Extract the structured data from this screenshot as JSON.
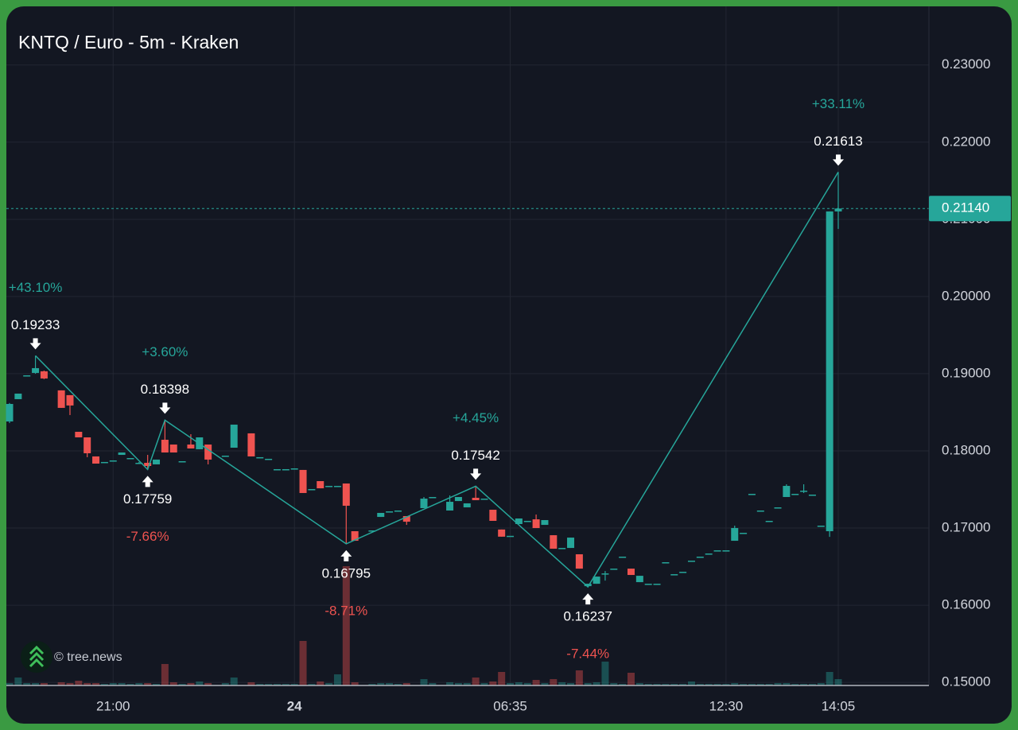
{
  "chart_data": {
    "type": "candlestick",
    "title": "KNTQ / Euro - 5m - Kraken",
    "watermark": "© tree.news",
    "up_color": "#26a69a",
    "down_color": "#ef5350",
    "grid": true,
    "categories": [
      null,
      null,
      null,
      null,
      null,
      null,
      null,
      null,
      null,
      null,
      null,
      null,
      "21:00",
      null,
      null,
      null,
      null,
      null,
      null,
      null,
      null,
      null,
      null,
      null,
      null,
      null,
      null,
      null,
      null,
      null,
      null,
      null,
      null,
      "24",
      null,
      null,
      null,
      null,
      null,
      null,
      null,
      null,
      null,
      null,
      null,
      null,
      null,
      null,
      null,
      null,
      null,
      null,
      null,
      null,
      null,
      null,
      null,
      null,
      "06:35",
      null,
      null,
      null,
      null,
      null,
      null,
      null,
      null,
      null,
      null,
      null,
      null,
      null,
      null,
      null,
      null,
      null,
      null,
      null,
      null,
      null,
      null,
      null,
      null,
      "12:30",
      null,
      null,
      null,
      null,
      null,
      null,
      null,
      null,
      null,
      null,
      null,
      null,
      "14:05"
    ],
    "open": [
      0.18381,
      0.1867,
      0.18979,
      0.1901,
      0.19031,
      null,
      0.18784,
      0.18722,
      0.18247,
      0.18175,
      0.17928,
      0.17856,
      0.17876,
      0.17948,
      0.17907,
      0.17835,
      0.17845,
      0.17825,
      0.18144,
      0.18082,
      0.17866,
      0.18082,
      0.18021,
      0.18082,
      null,
      0.17938,
      0.18041,
      null,
      0.18227,
      0.17918,
      0.17897,
      0.17763,
      0.17763,
      0.17773,
      0.17753,
      0.17505,
      0.17608,
      0.17546,
      0.17546,
      0.17577,
      0.16959,
      null,
      0.16969,
      0.17144,
      0.17216,
      0.17227,
      0.17155,
      null,
      0.17258,
      0.17402,
      null,
      0.17227,
      0.1735,
      0.17268,
      0.17392,
      0.17381,
      0.17237,
      0.16981,
      0.16899,
      0.17052,
      0.17093,
      0.17113,
      0.17041,
      0.16907,
      0.16742,
      0.16742,
      0.1666,
      0.16247,
      0.16278,
      0.16412,
      0.16474,
      0.16629,
      0.16474,
      0.16299,
      0.16278,
      0.16278,
      0.16557,
      0.16402,
      0.16433,
      0.16577,
      0.16629,
      0.1667,
      0.16711,
      0.16711,
      0.16835,
      0.16938,
      0.17443,
      0.17227,
      0.17093,
      0.17268,
      0.17402,
      0.17443,
      0.17484,
      0.17433,
      0.17031,
      0.16959,
      0.21103
    ],
    "high": [
      0.1862,
      0.18742,
      0.18979,
      0.19233,
      0.1904,
      null,
      0.18784,
      0.18722,
      0.18247,
      0.18175,
      0.17928,
      0.17856,
      0.17876,
      0.17979,
      0.17907,
      0.17856,
      0.17948,
      0.17887,
      0.18398,
      0.18082,
      0.17866,
      0.18216,
      0.18175,
      0.18082,
      null,
      0.17938,
      0.1834,
      null,
      0.18227,
      0.17918,
      0.17897,
      0.17763,
      0.17763,
      0.17773,
      0.17753,
      0.17505,
      0.17608,
      0.17546,
      0.17546,
      0.17577,
      0.16959,
      null,
      0.16969,
      0.17196,
      0.17216,
      0.17227,
      0.17155,
      null,
      0.17402,
      0.17402,
      null,
      0.17423,
      0.17402,
      0.1732,
      0.17542,
      0.17381,
      0.17237,
      0.16981,
      0.16899,
      0.17124,
      0.17093,
      0.17175,
      0.17103,
      0.16907,
      0.16742,
      0.16876,
      0.1666,
      0.16278,
      0.16371,
      0.16443,
      0.16474,
      0.16629,
      0.16474,
      0.16381,
      0.16278,
      0.16278,
      0.16557,
      0.16402,
      0.16433,
      0.16577,
      0.16629,
      0.1667,
      0.16711,
      0.16711,
      0.17031,
      0.16938,
      0.17443,
      0.17227,
      0.17093,
      0.17268,
      0.17567,
      0.17443,
      0.17567,
      0.17433,
      0.17031,
      0.21103,
      0.21613
    ],
    "low": [
      0.1836,
      0.1867,
      0.18979,
      0.19,
      0.1893,
      null,
      0.18557,
      0.18464,
      0.18175,
      0.17918,
      0.17835,
      0.17856,
      0.17876,
      0.17948,
      0.17907,
      0.17835,
      0.17759,
      0.17825,
      0.17979,
      0.17979,
      0.17866,
      0.18031,
      0.18021,
      0.17825,
      null,
      0.17938,
      0.18041,
      null,
      0.17928,
      0.17918,
      0.17897,
      0.17763,
      0.17763,
      0.17773,
      0.17454,
      0.17505,
      0.17515,
      0.17546,
      0.17546,
      0.16795,
      0.16835,
      null,
      0.16969,
      0.17144,
      0.17216,
      0.17227,
      0.17041,
      null,
      0.17258,
      0.17402,
      null,
      0.17227,
      0.1735,
      0.17268,
      0.17361,
      0.17381,
      0.17093,
      0.16888,
      0.16899,
      0.17052,
      0.17093,
      0.17,
      0.17041,
      0.16732,
      0.16742,
      0.16742,
      0.16474,
      0.16237,
      0.16278,
      0.16319,
      0.16474,
      0.16629,
      0.16392,
      0.16299,
      0.16278,
      0.16278,
      0.16557,
      0.16402,
      0.16433,
      0.16577,
      0.16629,
      0.1667,
      0.16711,
      0.16711,
      0.16835,
      0.16938,
      0.17443,
      0.17227,
      0.17093,
      0.17268,
      0.17402,
      0.17443,
      0.17454,
      0.17433,
      0.17031,
      0.16886,
      0.20876
    ],
    "close": [
      0.18608,
      0.18742,
      0.18979,
      0.19072,
      0.18938,
      null,
      0.18557,
      0.18588,
      0.18175,
      0.17969,
      0.17835,
      0.17856,
      0.17876,
      0.17979,
      0.17907,
      0.17845,
      0.17804,
      0.17887,
      0.17979,
      0.17979,
      0.17866,
      0.18031,
      0.18175,
      0.17887,
      null,
      0.17938,
      0.1834,
      null,
      0.17928,
      0.17918,
      0.17897,
      0.17763,
      0.17763,
      0.17773,
      0.17454,
      0.17505,
      0.17515,
      0.17546,
      0.17546,
      0.17289,
      0.16835,
      null,
      0.16969,
      0.17196,
      0.17216,
      0.17227,
      0.17082,
      null,
      0.17381,
      0.17402,
      null,
      0.1734,
      0.17402,
      0.1732,
      0.17361,
      0.17381,
      0.17093,
      0.16888,
      0.16899,
      0.17124,
      0.17093,
      0.17,
      0.17103,
      0.16732,
      0.16742,
      0.16876,
      0.16474,
      0.16278,
      0.16371,
      0.16412,
      0.16474,
      0.16629,
      0.16392,
      0.16381,
      0.16278,
      0.16278,
      0.16557,
      0.16402,
      0.16433,
      0.16577,
      0.16629,
      0.1667,
      0.16711,
      0.16711,
      0.17,
      0.16938,
      0.17443,
      0.17227,
      0.17093,
      0.17268,
      0.17546,
      0.17443,
      0.17484,
      0.17433,
      0.17031,
      0.21103,
      0.2114
    ],
    "volume": [
      3,
      10,
      3,
      3,
      3,
      null,
      4,
      3,
      6,
      3,
      3,
      2,
      3,
      3,
      2,
      3,
      3,
      2,
      27,
      4,
      2,
      3,
      5,
      3,
      null,
      3,
      10,
      null,
      4,
      2,
      2,
      2,
      2,
      2,
      56,
      2,
      5,
      3,
      14,
      150,
      4,
      null,
      2,
      3,
      3,
      2,
      3,
      null,
      8,
      3,
      null,
      4,
      3,
      3,
      10,
      3,
      5,
      17,
      3,
      4,
      3,
      7,
      3,
      8,
      4,
      3,
      19,
      3,
      4,
      30,
      3,
      2,
      16,
      3,
      2,
      2,
      2,
      2,
      2,
      5,
      2,
      2,
      2,
      2,
      3,
      2,
      2,
      2,
      2,
      3,
      3,
      2,
      2,
      2,
      3,
      17,
      8
    ],
    "ylim": [
      0.1496,
      0.2376
    ],
    "yticks": [
      {
        "value": 0.15,
        "label": "0.15000"
      },
      {
        "value": 0.16,
        "label": "0.16000"
      },
      {
        "value": 0.17,
        "label": "0.17000"
      },
      {
        "value": 0.18,
        "label": "0.18000"
      },
      {
        "value": 0.19,
        "label": "0.19000"
      },
      {
        "value": 0.2,
        "label": "0.20000"
      },
      {
        "value": 0.21,
        "label": "0.21000"
      },
      {
        "value": 0.22,
        "label": "0.22000"
      },
      {
        "value": 0.23,
        "label": "0.23000"
      }
    ],
    "last_price": {
      "value": 0.2114,
      "label": "0.21140"
    },
    "pivots": [
      {
        "x": 3,
        "value": 0.19233,
        "change": "+43.10%",
        "kind": "high"
      },
      {
        "x": 16,
        "value": 0.17759,
        "change": "-7.66%",
        "kind": "low"
      },
      {
        "x": 18,
        "value": 0.18398,
        "change": "+3.60%",
        "kind": "high"
      },
      {
        "x": 39,
        "value": 0.16795,
        "change": "-8.71%",
        "kind": "low"
      },
      {
        "x": 54,
        "value": 0.17542,
        "change": "+4.45%",
        "kind": "high"
      },
      {
        "x": 67,
        "value": 0.16237,
        "change": "-7.44%",
        "kind": "low"
      },
      {
        "x": 96,
        "value": 0.21613,
        "change": "+33.11%",
        "kind": "high"
      }
    ]
  }
}
